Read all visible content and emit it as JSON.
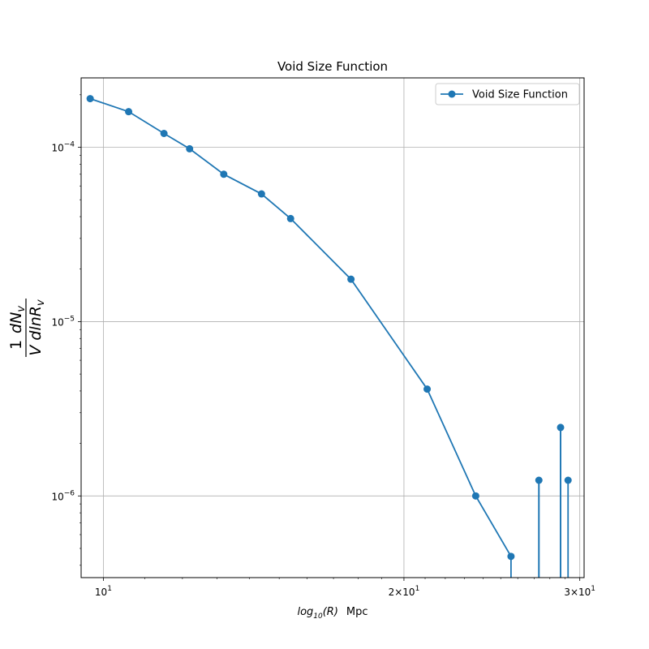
{
  "chart_data": {
    "type": "line",
    "title": "Void Size Function",
    "xlabel_text": "log",
    "xlabel_sub": "10",
    "xlabel_arg": "(R)",
    "xlabel_unit": "Mpc",
    "ylabel_parts": {
      "numerator_left": "1",
      "numerator_right": "dN",
      "numerator_sub": "v",
      "denominator": "V dlnR",
      "denominator_sub": "v"
    },
    "x_scale": "log",
    "y_scale": "log",
    "xlim": [
      9.5,
      30.3
    ],
    "ylim": [
      3.4e-07,
      0.00025
    ],
    "grid": true,
    "legend_placement": "top-right",
    "x_ticks": [
      {
        "value": 10,
        "base": "10",
        "exp": "1",
        "coef": ""
      },
      {
        "value": 20,
        "base": "10",
        "exp": "1",
        "coef": "2×"
      },
      {
        "value": 30,
        "base": "10",
        "exp": "1",
        "coef": "3×"
      }
    ],
    "y_ticks": [
      {
        "value": 0.0001,
        "base": "10",
        "exp": "−4"
      },
      {
        "value": 1e-05,
        "base": "10",
        "exp": "−5"
      },
      {
        "value": 1e-06,
        "base": "10",
        "exp": "−6"
      }
    ],
    "series": [
      {
        "name": "Void Size Function",
        "color": "#1f77b4",
        "x": [
          9.7,
          10.6,
          11.5,
          12.2,
          13.2,
          14.4,
          15.4,
          17.7,
          21.1,
          23.6,
          25.6,
          27.3,
          28.7,
          29.2
        ],
        "y": [
          0.00019,
          0.00016,
          0.00012,
          9.8e-05,
          7e-05,
          5.4e-05,
          3.9e-05,
          1.75e-05,
          4.1e-06,
          1e-06,
          4.5e-07,
          1.23e-06,
          2.47e-06,
          1.23e-06
        ],
        "zero_after": [
          false,
          false,
          false,
          false,
          false,
          false,
          false,
          false,
          false,
          false,
          true,
          true,
          true,
          false
        ]
      }
    ]
  }
}
